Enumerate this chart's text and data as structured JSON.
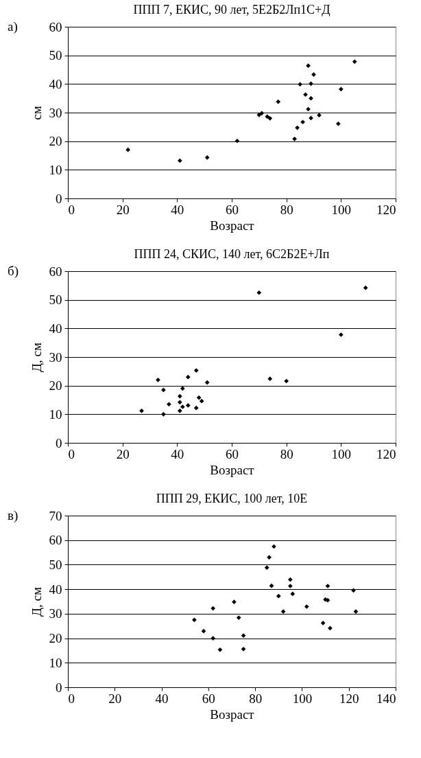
{
  "chart_data": [
    {
      "type": "scatter",
      "title": "ППП 7, ЕКИС, 90 лет,  5Е2Б2Лп1С+Д",
      "xlabel": "Возраст",
      "ylabel": "см",
      "annotations": [
        "а)"
      ],
      "xlim": [
        0,
        120
      ],
      "xticks": [
        0,
        20,
        40,
        60,
        80,
        100,
        120
      ],
      "ylim": [
        0,
        60
      ],
      "yticks": [
        0,
        10,
        20,
        30,
        40,
        50,
        60
      ],
      "grid": "y",
      "marker": "diamond",
      "series": [
        {
          "color": "#000000",
          "x": [
            22,
            41,
            51,
            62,
            70,
            71,
            73,
            74,
            77,
            83,
            84,
            85,
            86,
            87,
            88,
            88,
            89,
            89,
            89,
            90,
            92,
            99,
            100,
            105
          ],
          "values": [
            17,
            13.2,
            14.3,
            20.1,
            29.2,
            29.8,
            28.6,
            28,
            33.8,
            20.8,
            24.7,
            39.9,
            26.7,
            36.3,
            46.4,
            31.2,
            40.1,
            35,
            28.1,
            43.3,
            29.1,
            26.1,
            38.2,
            47.8
          ]
        }
      ]
    },
    {
      "type": "scatter",
      "title": "ППП 24, СКИС, 140 лет, 6С2Б2Е+Лп",
      "xlabel": "Возраст",
      "ylabel": "Д, см",
      "annotations": [
        "б)"
      ],
      "xlim": [
        0,
        120
      ],
      "xticks": [
        0,
        20,
        40,
        60,
        80,
        100,
        120
      ],
      "ylim": [
        0,
        60
      ],
      "yticks": [
        0,
        10,
        20,
        30,
        40,
        50,
        60
      ],
      "grid": "y",
      "marker": "diamond",
      "series": [
        {
          "color": "#000000",
          "x": [
            70,
            109,
            100,
            33,
            35,
            37,
            35,
            27,
            41,
            41,
            41,
            42,
            42,
            44,
            44,
            47,
            47,
            48,
            49,
            51,
            74,
            80
          ],
          "values": [
            52.5,
            54.2,
            37.8,
            22,
            18.5,
            13.5,
            10,
            11.2,
            16.3,
            14.2,
            11.2,
            19,
            12.6,
            23,
            13.1,
            25.3,
            12.2,
            15.8,
            14.6,
            21.1,
            22.4,
            21.6
          ]
        }
      ]
    },
    {
      "type": "scatter",
      "title": "ППП 29, ЕКИС, 100 лет, 10Е",
      "xlabel": "Возраст",
      "ylabel": "Д, см",
      "annotations": [
        "в)"
      ],
      "xlim": [
        0,
        140
      ],
      "xticks": [
        0,
        20,
        40,
        60,
        80,
        100,
        120,
        140
      ],
      "ylim": [
        0,
        70
      ],
      "yticks": [
        0,
        10,
        20,
        30,
        40,
        50,
        60,
        70
      ],
      "grid": "y",
      "marker": "diamond",
      "series": [
        {
          "color": "#000000",
          "x": [
            54,
            58,
            62,
            62,
            65,
            71,
            73,
            75,
            75,
            85,
            86,
            88,
            87,
            90,
            92,
            95,
            95,
            96,
            102,
            109,
            110,
            111,
            111,
            112,
            122,
            123
          ],
          "values": [
            27.5,
            22.9,
            32.2,
            20,
            15.3,
            34.8,
            28.4,
            21.1,
            15.6,
            48.8,
            53,
            57.4,
            41.4,
            37.2,
            30.9,
            43.9,
            41.3,
            38.1,
            32.9,
            26.2,
            35.8,
            35.5,
            41.3,
            24.1,
            39.5,
            30.9
          ]
        }
      ]
    }
  ]
}
